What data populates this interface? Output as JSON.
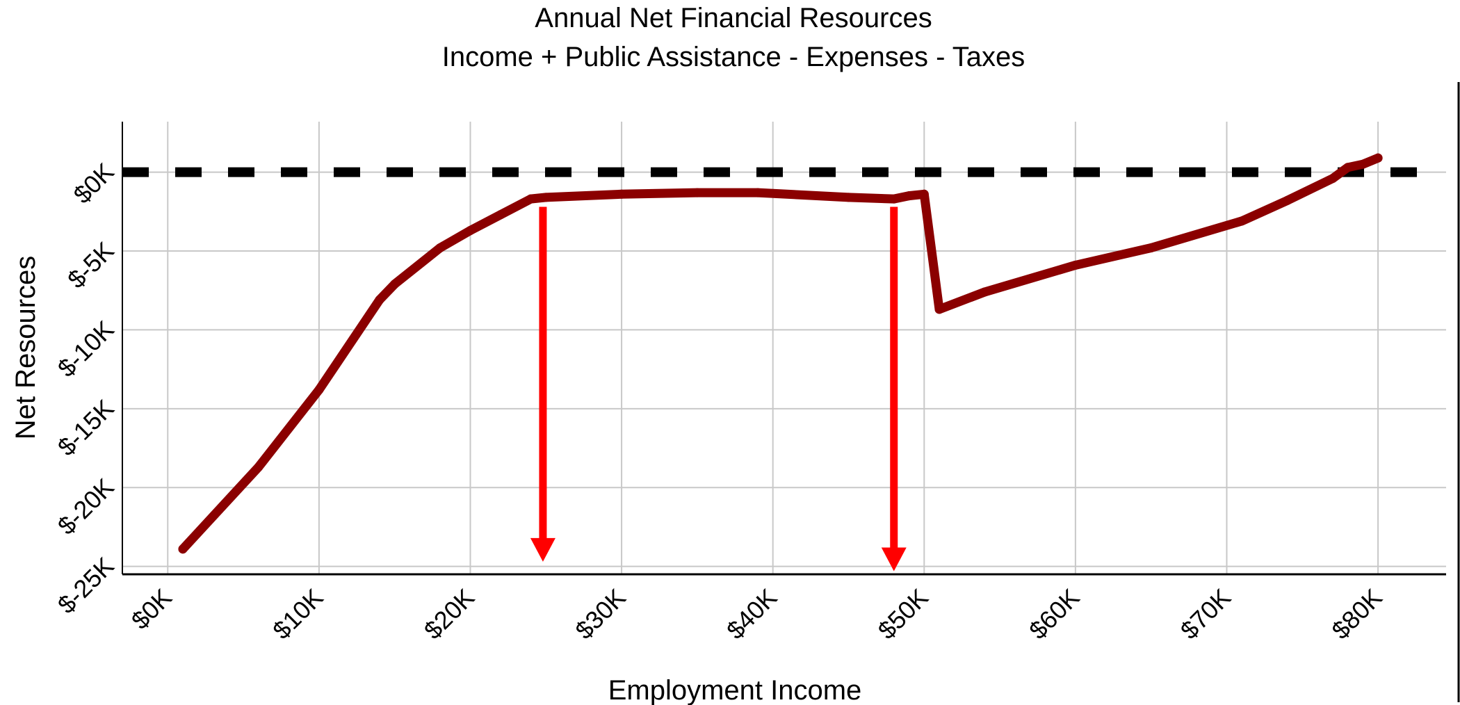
{
  "chart_data": {
    "type": "line",
    "title": "Annual Net Financial Resources",
    "subtitle": "Income + Public Assistance - Expenses - Taxes",
    "xlabel": "Employment Income",
    "ylabel": "Net Resources",
    "xlim": [
      -3000,
      84500
    ],
    "ylim": [
      -25500,
      3200
    ],
    "x_ticks": [
      0,
      10000,
      20000,
      30000,
      40000,
      50000,
      60000,
      70000,
      80000
    ],
    "x_tick_labels": [
      "$0K",
      "$10K",
      "$20K",
      "$30K",
      "$40K",
      "$50K",
      "$60K",
      "$70K",
      "$80K"
    ],
    "y_ticks": [
      0,
      -5000,
      -10000,
      -15000,
      -20000,
      -25000
    ],
    "y_tick_labels": [
      "$0K",
      "$-5K",
      "$-10K",
      "$-15K",
      "$-20K",
      "$-25K"
    ],
    "grid": true,
    "series": [
      {
        "color": "#8b0000",
        "x": [
          1000,
          6000,
          10000,
          14000,
          15000,
          18000,
          20000,
          22000,
          24000,
          25000,
          30000,
          35000,
          39000,
          45000,
          48000,
          49000,
          50000,
          51000,
          54000,
          60000,
          65000,
          71000,
          74000,
          77000,
          78000,
          79000,
          80000
        ],
        "y": [
          -23900,
          -18700,
          -13800,
          -8100,
          -7100,
          -4800,
          -3700,
          -2700,
          -1700,
          -1600,
          -1400,
          -1300,
          -1300,
          -1600,
          -1700,
          -1500,
          -1400,
          -8700,
          -7600,
          -5900,
          -4800,
          -3100,
          -1800,
          -400,
          300,
          500,
          900
        ]
      }
    ],
    "reference_lines": [
      {
        "orientation": "horizontal",
        "y": 0,
        "style": "dashed",
        "color": "#000000"
      }
    ],
    "annotations": [
      {
        "type": "arrow",
        "direction": "down",
        "x": 24800,
        "y_start": -2200,
        "y_end": -24700,
        "color": "#ff0000"
      },
      {
        "type": "arrow",
        "direction": "down",
        "x": 48000,
        "y_start": -2200,
        "y_end": -25300,
        "color": "#ff0000"
      }
    ]
  }
}
